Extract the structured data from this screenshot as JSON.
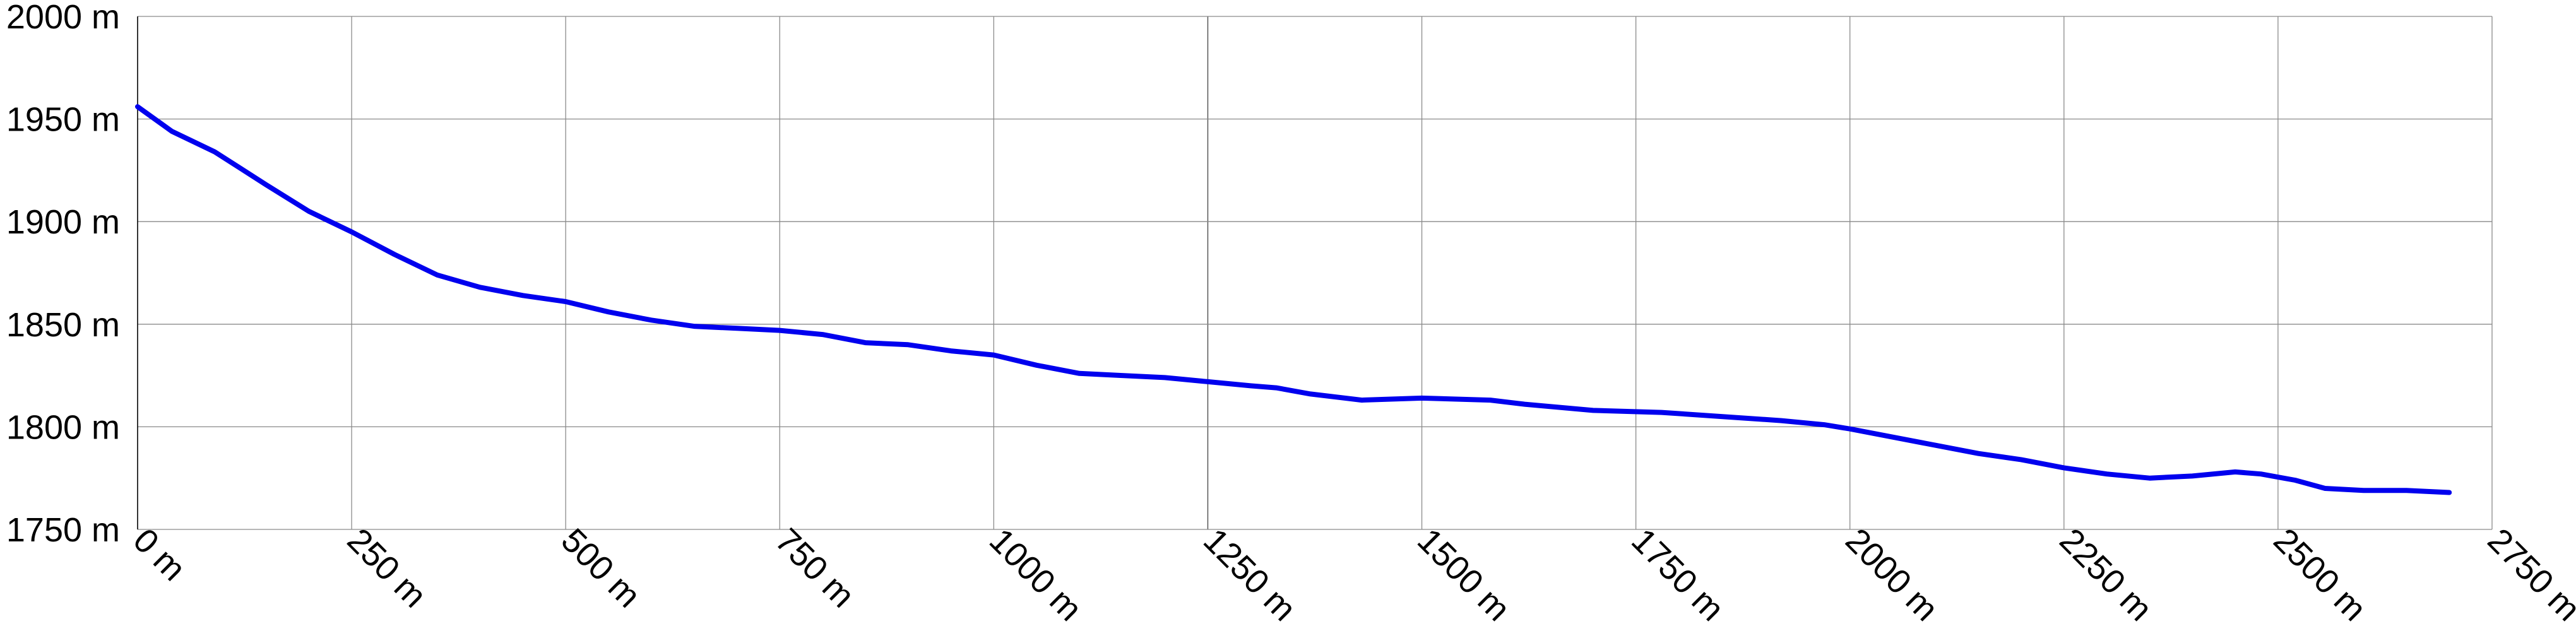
{
  "chart_data": {
    "type": "line",
    "title": "",
    "xlabel": "",
    "ylabel": "",
    "x_unit": "m",
    "y_unit": "m",
    "xlim": [
      0,
      2750
    ],
    "ylim": [
      1750,
      2000
    ],
    "x_ticks": [
      0,
      250,
      500,
      750,
      1000,
      1250,
      1500,
      1750,
      2000,
      2250,
      2500,
      2750
    ],
    "y_ticks": [
      1750,
      1800,
      1850,
      1900,
      1950,
      2000
    ],
    "x_tick_labels": [
      "0 m",
      "250 m",
      "500 m",
      "750 m",
      "1000 m",
      "1250 m",
      "1500 m",
      "1750 m",
      "2000 m",
      "2250 m",
      "2500 m",
      "2750 m"
    ],
    "y_tick_labels": [
      "1750 m",
      "1800 m",
      "1850 m",
      "1900 m",
      "1950 m",
      "2000 m"
    ],
    "grid": true,
    "legend": "none",
    "series": [
      {
        "color": "#0000ee",
        "x": [
          0,
          40,
          90,
          150,
          200,
          250,
          300,
          350,
          400,
          450,
          500,
          550,
          600,
          650,
          700,
          750,
          800,
          850,
          900,
          950,
          1000,
          1050,
          1100,
          1150,
          1200,
          1250,
          1300,
          1330,
          1370,
          1430,
          1500,
          1580,
          1620,
          1700,
          1780,
          1850,
          1920,
          1970,
          2000,
          2050,
          2100,
          2150,
          2200,
          2250,
          2300,
          2350,
          2400,
          2450,
          2480,
          2520,
          2555,
          2600,
          2650,
          2700
        ],
        "y": [
          1956,
          1944,
          1934,
          1918,
          1905,
          1895,
          1884,
          1874,
          1868,
          1864,
          1861,
          1856,
          1852,
          1849,
          1848,
          1847,
          1845,
          1841,
          1840,
          1837,
          1835,
          1830,
          1826,
          1825,
          1824,
          1822,
          1820,
          1819,
          1816,
          1813,
          1814,
          1813,
          1811,
          1808,
          1807,
          1805,
          1803,
          1801,
          1799,
          1795,
          1791,
          1787,
          1784,
          1780,
          1777,
          1775,
          1776,
          1778,
          1777,
          1774,
          1770,
          1769,
          1769,
          1768
        ]
      }
    ]
  }
}
